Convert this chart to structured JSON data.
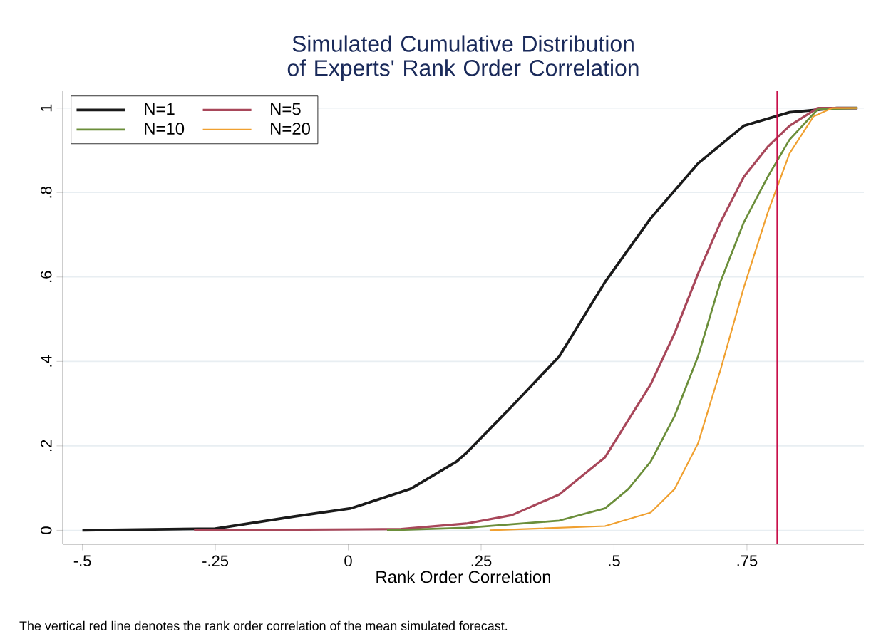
{
  "chart_data": {
    "type": "line",
    "title": "Simulated Cumulative Distribution of Experts' Rank Order Correlation",
    "xlabel": "Rank Order Correlation",
    "annotations": [
      "The vertical red line denotes the rank order correlation of the mean simulated forecast."
    ],
    "xlim": [
      -0.537,
      0.97
    ],
    "ylim": [
      -0.033,
      1.04
    ],
    "xticks": [
      {
        "value": -0.5,
        "label": "-.5"
      },
      {
        "value": -0.25,
        "label": "-.25"
      },
      {
        "value": 0,
        "label": "0"
      },
      {
        "value": 0.25,
        "label": ".25"
      },
      {
        "value": 0.5,
        "label": ".5"
      },
      {
        "value": 0.75,
        "label": ".75"
      }
    ],
    "yticks": [
      {
        "value": 0,
        "label": "0"
      },
      {
        "value": 0.2,
        "label": ".2"
      },
      {
        "value": 0.4,
        "label": ".4"
      },
      {
        "value": 0.6,
        "label": ".6"
      },
      {
        "value": 0.8,
        "label": ".8"
      },
      {
        "value": 1,
        "label": "1"
      }
    ],
    "grid": "y",
    "legend": "top left",
    "line_style": "solid",
    "marker": "none",
    "ref_lines": [
      {
        "axis": "x",
        "value": 0.807,
        "color": "#c8104a"
      }
    ],
    "series": [
      {
        "name": "N=1",
        "color": "#1a1a1a",
        "x": [
          -0.5,
          -0.25,
          -0.1,
          0.005,
          0.117,
          0.204,
          0.222,
          0.308,
          0.397,
          0.483,
          0.569,
          0.658,
          0.744,
          0.83,
          0.919,
          0.958
        ],
        "values": [
          0,
          0.004,
          0.033,
          0.052,
          0.098,
          0.163,
          0.183,
          0.294,
          0.412,
          0.588,
          0.739,
          0.869,
          0.958,
          0.99,
          1,
          1
        ]
      },
      {
        "name": "N=5",
        "color": "#a8475a",
        "x": [
          -0.29,
          0.1,
          0.222,
          0.308,
          0.397,
          0.483,
          0.569,
          0.614,
          0.658,
          0.7,
          0.744,
          0.789,
          0.83,
          0.883,
          0.958
        ],
        "values": [
          0,
          0.003,
          0.016,
          0.036,
          0.085,
          0.173,
          0.346,
          0.467,
          0.608,
          0.729,
          0.837,
          0.908,
          0.958,
          1,
          1
        ]
      },
      {
        "name": "N=10",
        "color": "#6b8e3a",
        "x": [
          0.073,
          0.222,
          0.397,
          0.483,
          0.527,
          0.569,
          0.614,
          0.658,
          0.7,
          0.744,
          0.789,
          0.83,
          0.883,
          0.958
        ],
        "values": [
          0,
          0.006,
          0.023,
          0.052,
          0.098,
          0.163,
          0.271,
          0.412,
          0.588,
          0.729,
          0.837,
          0.925,
          0.997,
          1
        ]
      },
      {
        "name": "N=20",
        "color": "#f0a030",
        "x": [
          0.266,
          0.483,
          0.569,
          0.614,
          0.658,
          0.7,
          0.744,
          0.789,
          0.83,
          0.875,
          0.91,
          0.958
        ],
        "values": [
          0,
          0.01,
          0.042,
          0.098,
          0.206,
          0.379,
          0.575,
          0.752,
          0.892,
          0.98,
          1,
          1
        ]
      }
    ]
  }
}
